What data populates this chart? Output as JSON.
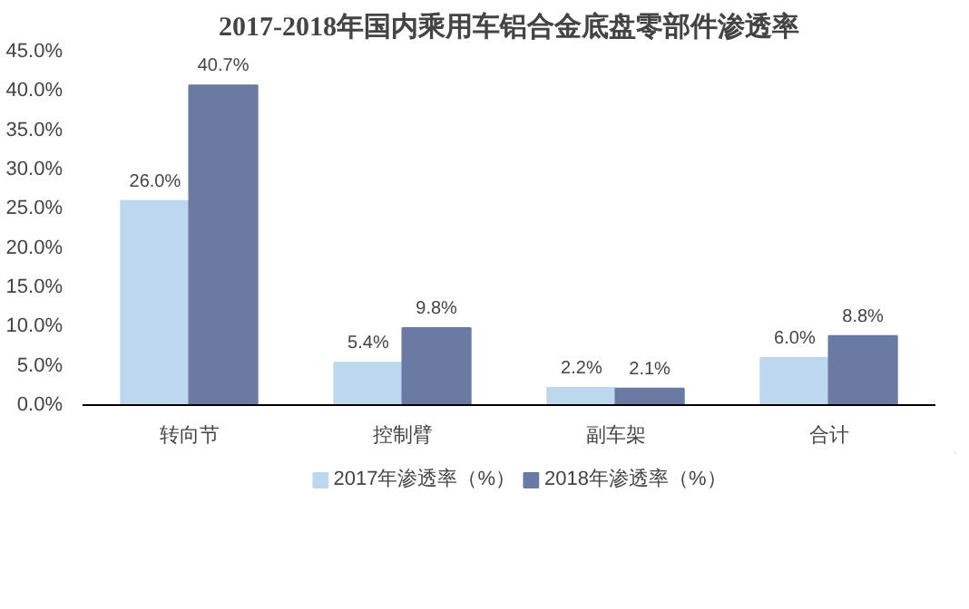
{
  "chart_data": {
    "type": "bar",
    "title": "2017-2018年国内乘用车铝合金底盘零部件渗透率",
    "categories": [
      "转向节",
      "控制臂",
      "副车架",
      "合计"
    ],
    "series": [
      {
        "name": "2017年渗透率（%）",
        "color": "#bdd7ee",
        "values": [
          26.0,
          5.4,
          2.2,
          6.0
        ],
        "value_labels": [
          "26.0%",
          "5.4%",
          "2.2%",
          "6.0%"
        ]
      },
      {
        "name": "2018年渗透率（%）",
        "color": "#6b7aa3",
        "values": [
          40.7,
          9.8,
          2.1,
          8.8
        ],
        "value_labels": [
          "40.7%",
          "9.8%",
          "2.1%",
          "8.8%"
        ]
      }
    ],
    "ylim": [
      0,
      45
    ],
    "yticks": [
      {
        "value": 0,
        "label": "0.0%"
      },
      {
        "value": 5,
        "label": "5.0%"
      },
      {
        "value": 10,
        "label": "10.0%"
      },
      {
        "value": 15,
        "label": "15.0%"
      },
      {
        "value": 20,
        "label": "20.0%"
      },
      {
        "value": 25,
        "label": "25.0%"
      },
      {
        "value": 30,
        "label": "30.0%"
      },
      {
        "value": 35,
        "label": "35.0%"
      },
      {
        "value": 40,
        "label": "40.0%"
      },
      {
        "value": 45,
        "label": "45.0%"
      }
    ],
    "grid": false,
    "legend": "bottom"
  }
}
